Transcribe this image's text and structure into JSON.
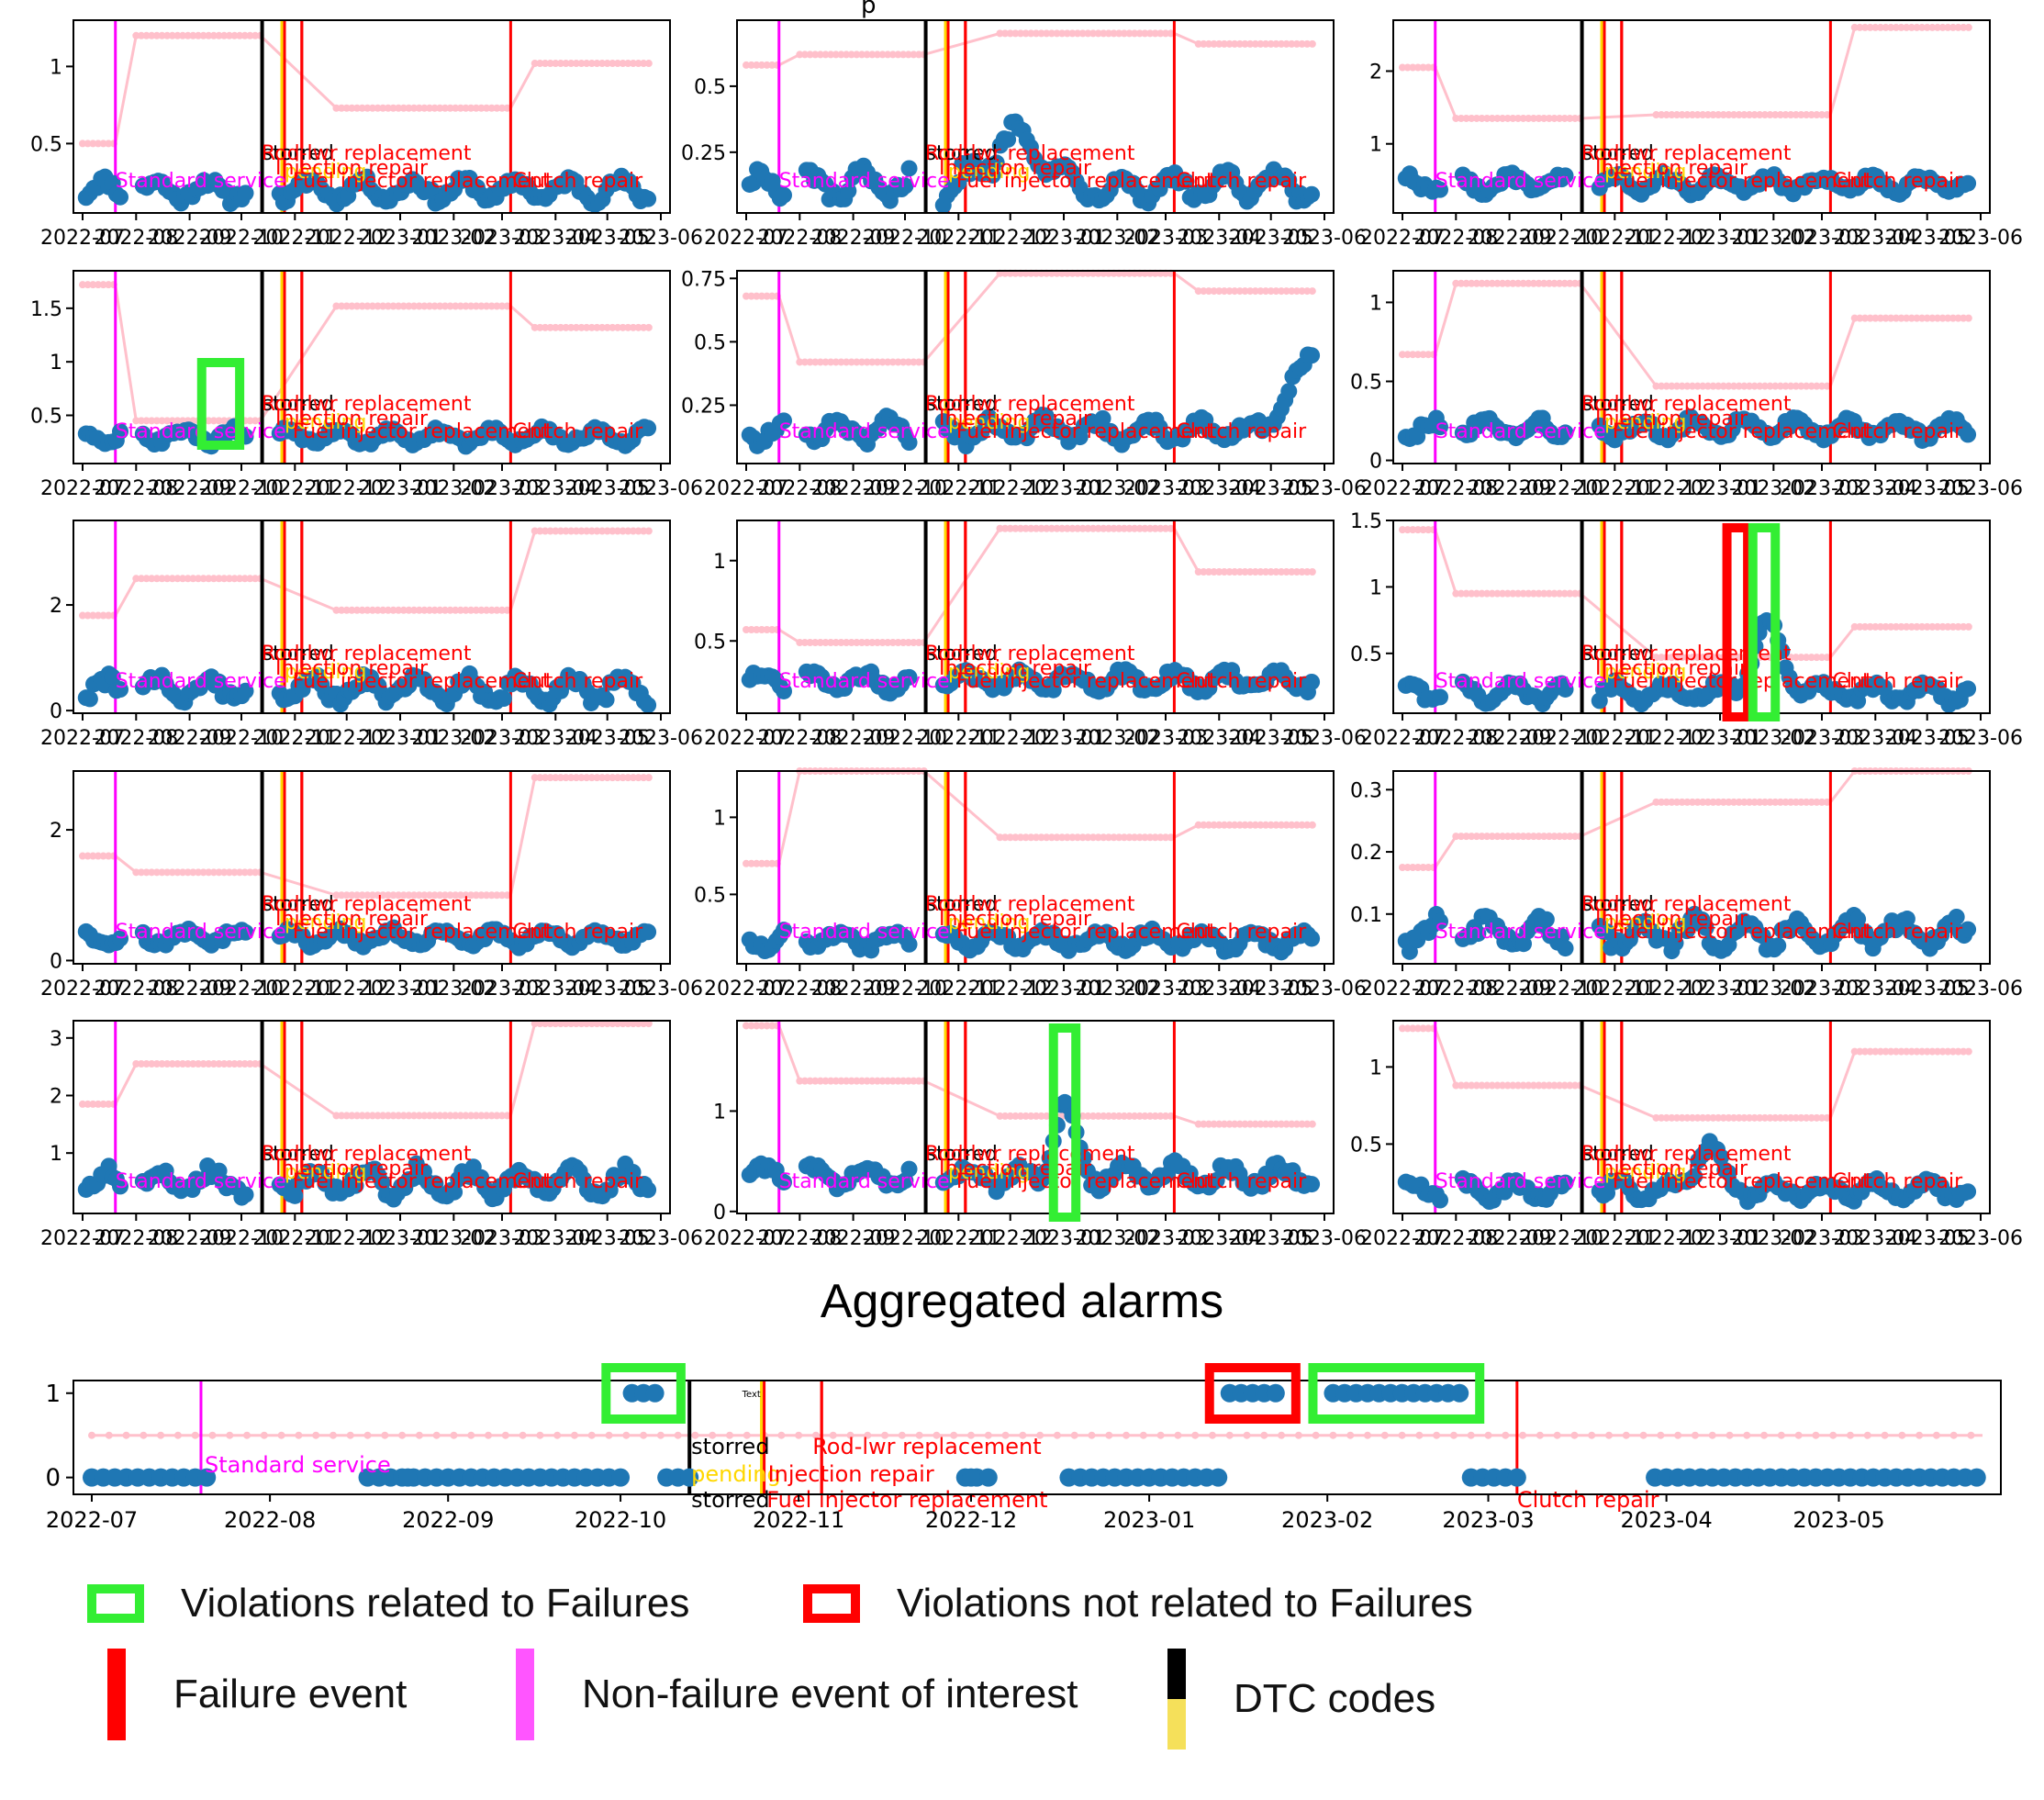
{
  "figure": {
    "aggregated_title": "Aggregated alarms",
    "top_title_fragment": "p"
  },
  "legend": {
    "items": [
      {
        "label": "Violations related to Failures",
        "kind": "box",
        "color": "#33ee33"
      },
      {
        "label": "Violations not related to Failures",
        "kind": "box",
        "color": "#ff0000"
      },
      {
        "label": "Failure event",
        "kind": "bar",
        "color": "#ff0000"
      },
      {
        "label": "Non-failure event of interest",
        "kind": "bar",
        "color": "#ff55ff"
      },
      {
        "label": "DTC codes",
        "kind": "dtc",
        "color_top": "#000000",
        "color_bottom": "#f5e05a"
      }
    ]
  },
  "colors": {
    "series_points": "#1f77b4",
    "threshold": "#ffc0cb",
    "failure": "#ff0000",
    "non_failure": "#ff00ff",
    "dtc_stored": "#000000",
    "dtc_pending": "#ffd700",
    "violation_related": "#33ee33",
    "violation_unrelated": "#ff0000"
  },
  "chart_data": {
    "type": "scatter",
    "x_domain": [
      "2022-07-01",
      "2023-06-01"
    ],
    "x_tick_labels": [
      "2022-07",
      "2022-08",
      "2022-09",
      "2022-10",
      "2022-11",
      "2022-12",
      "2023-01",
      "2023-02",
      "2023-03",
      "2023-04",
      "2023-05",
      "2023-06"
    ],
    "events": [
      {
        "date": "2022-07-20",
        "kind": "non_failure",
        "label": "Standard service"
      },
      {
        "date": "2022-10-13",
        "kind": "dtc_stored",
        "label": "storred"
      },
      {
        "date": "2022-10-26",
        "kind": "dtc_pending",
        "label": "pending"
      },
      {
        "date": "2022-10-26",
        "kind": "failure",
        "label": "Injection repair"
      },
      {
        "date": "2022-11-05",
        "kind": "failure",
        "label": "Rod-lwr replacement"
      },
      {
        "date": "2022-11-05",
        "kind": "failure",
        "label": "Fuel injector replacement"
      },
      {
        "date": "2023-03-06",
        "kind": "failure",
        "label": "Clutch repair"
      }
    ],
    "subplots": [
      {
        "ylim": [
          0.05,
          1.3
        ],
        "yticks": [
          0.5,
          1.0
        ],
        "threshold": [
          0.5,
          1.2,
          0.73,
          1.02
        ],
        "base": 0.2,
        "amp": 0.06
      },
      {
        "ylim": [
          0.02,
          0.75
        ],
        "yticks": [
          0.25,
          0.5
        ],
        "threshold": [
          0.58,
          0.62,
          0.7,
          0.66
        ],
        "base": 0.12,
        "amp": 0.05,
        "bump": {
          "center": "2022-12-05",
          "width": 20,
          "height": 0.2
        }
      },
      {
        "ylim": [
          0.05,
          2.7
        ],
        "yticks": [
          1,
          2
        ],
        "threshold": [
          2.05,
          1.35,
          1.4,
          2.6
        ],
        "base": 0.45,
        "amp": 0.1
      },
      {
        "ylim": [
          0.05,
          1.85
        ],
        "yticks": [
          0.5,
          1.0,
          1.5
        ],
        "threshold": [
          1.72,
          0.45,
          1.52,
          1.32
        ],
        "base": 0.3,
        "amp": 0.06,
        "violations": [
          {
            "start": "2022-09-08",
            "end": "2022-09-30",
            "kind": "related"
          }
        ]
      },
      {
        "ylim": [
          0.02,
          0.78
        ],
        "yticks": [
          0.25,
          0.5,
          0.75
        ],
        "threshold": [
          0.68,
          0.42,
          0.77,
          0.7
        ],
        "base": 0.15,
        "amp": 0.04,
        "ramp": {
          "start": "2023-04-25",
          "height": 0.28
        }
      },
      {
        "ylim": [
          -0.02,
          1.2
        ],
        "yticks": [
          0.0,
          0.5,
          1.0
        ],
        "threshold": [
          0.67,
          1.12,
          0.47,
          0.9
        ],
        "base": 0.2,
        "amp": 0.05
      },
      {
        "ylim": [
          -0.05,
          3.6
        ],
        "yticks": [
          0,
          2
        ],
        "threshold": [
          1.8,
          2.5,
          1.9,
          3.4
        ],
        "base": 0.4,
        "amp": 0.2
      },
      {
        "ylim": [
          0.05,
          1.25
        ],
        "yticks": [
          0.5,
          1.0
        ],
        "threshold": [
          0.57,
          0.49,
          1.2,
          0.93
        ],
        "base": 0.25,
        "amp": 0.05
      },
      {
        "ylim": [
          0.05,
          1.5
        ],
        "yticks": [
          0.5,
          1.0,
          1.5
        ],
        "threshold": [
          1.43,
          0.95,
          0.47,
          0.7
        ],
        "base": 0.2,
        "amp": 0.06,
        "bump": {
          "center": "2023-01-28",
          "width": 12,
          "height": 0.5
        },
        "violations": [
          {
            "start": "2023-01-05",
            "end": "2023-01-17",
            "kind": "unrelated"
          },
          {
            "start": "2023-01-20",
            "end": "2023-02-02",
            "kind": "related"
          }
        ]
      },
      {
        "ylim": [
          -0.05,
          2.9
        ],
        "yticks": [
          0,
          2
        ],
        "threshold": [
          1.6,
          1.35,
          1.0,
          2.8
        ],
        "base": 0.35,
        "amp": 0.1
      },
      {
        "ylim": [
          0.05,
          1.3
        ],
        "yticks": [
          0.5,
          1.0
        ],
        "threshold": [
          0.7,
          1.3,
          0.87,
          0.95
        ],
        "base": 0.2,
        "amp": 0.05
      },
      {
        "ylim": [
          0.02,
          0.33
        ],
        "yticks": [
          0.1,
          0.2,
          0.3
        ],
        "threshold": [
          0.175,
          0.225,
          0.28,
          0.33
        ],
        "base": 0.07,
        "amp": 0.02
      },
      {
        "ylim": [
          -0.05,
          3.3
        ],
        "yticks": [
          1,
          2,
          3
        ],
        "threshold": [
          1.85,
          2.55,
          1.65,
          3.25
        ],
        "base": 0.5,
        "amp": 0.2
      },
      {
        "ylim": [
          -0.02,
          1.9
        ],
        "yticks": [
          0,
          1
        ],
        "threshold": [
          1.85,
          1.3,
          0.95,
          0.87
        ],
        "base": 0.35,
        "amp": 0.1,
        "bump": {
          "center": "2023-01-01",
          "width": 8,
          "height": 0.75
        },
        "violations": [
          {
            "start": "2022-12-26",
            "end": "2023-01-08",
            "kind": "related"
          }
        ]
      },
      {
        "ylim": [
          0.05,
          1.3
        ],
        "yticks": [
          0.5,
          1.0
        ],
        "threshold": [
          1.25,
          0.88,
          0.67,
          1.1
        ],
        "base": 0.2,
        "amp": 0.05,
        "bump": {
          "center": "2022-12-25",
          "width": 10,
          "height": 0.3
        }
      }
    ],
    "aggregated": {
      "title": "Aggregated alarms",
      "ylim": [
        -0.2,
        1.15
      ],
      "yticks": [
        0,
        1
      ],
      "threshold_level": 0.5,
      "alarm_ranges": [
        {
          "start": "2022-10-02",
          "end": "2022-10-08",
          "kind": "related"
        },
        {
          "start": "2023-01-15",
          "end": "2023-01-23",
          "kind": "unrelated"
        },
        {
          "start": "2023-02-02",
          "end": "2023-02-24",
          "kind": "related"
        }
      ],
      "x_tick_labels": [
        "2022-07",
        "2022-08",
        "2022-09",
        "2022-10",
        "2022-11",
        "2022-12",
        "2023-01",
        "2023-02",
        "2023-03",
        "2023-04",
        "2023-05"
      ],
      "tiny_text": "Text"
    }
  }
}
